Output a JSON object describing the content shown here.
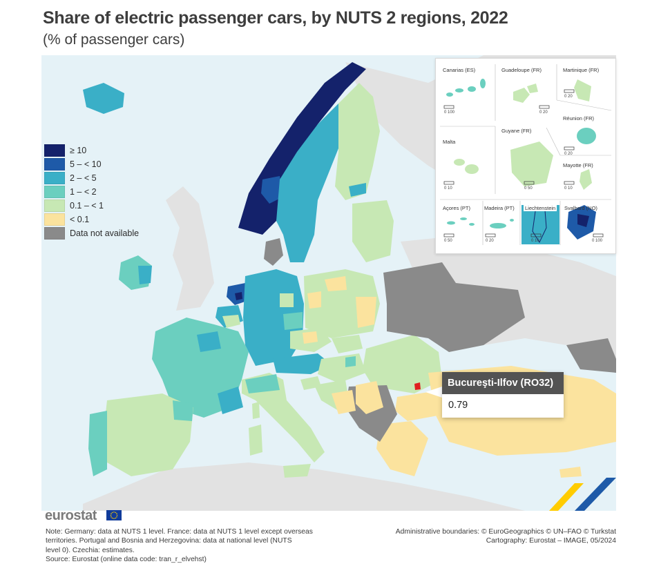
{
  "title": "Share of electric passenger cars, by NUTS 2 regions, 2022",
  "subtitle": "(% of passenger cars)",
  "legend": [
    {
      "label": "≥ 10",
      "color": "#14226b"
    },
    {
      "label": "5 – < 10",
      "color": "#1e5aa8"
    },
    {
      "label": "2 – < 5",
      "color": "#3aafc7"
    },
    {
      "label": "1 – < 2",
      "color": "#6bcfbf"
    },
    {
      "label": "0.1 – < 1",
      "color": "#c7e8b4"
    },
    {
      "label": "< 0.1",
      "color": "#fbe39e"
    },
    {
      "label": "Data not available",
      "color": "#8a8a8a"
    }
  ],
  "insets": {
    "canarias": {
      "label": "Canarias (ES)",
      "scale": "0   100"
    },
    "guadeloupe": {
      "label": "Guadeloupe (FR)",
      "scale": "0   20"
    },
    "martinique": {
      "label": "Martinique (FR)",
      "scale": "0   20"
    },
    "reunion": {
      "label": "Réunion (FR)",
      "scale": "0   20"
    },
    "guyane": {
      "label": "Guyane (FR)",
      "scale": "0   50"
    },
    "malta": {
      "label": "Malta",
      "scale": "0   10"
    },
    "mayotte": {
      "label": "Mayotte (FR)",
      "scale": "0   10"
    },
    "acores": {
      "label": "Açores (PT)",
      "scale": "0   50"
    },
    "madeira": {
      "label": "Madeira (PT)",
      "scale": "0   20"
    },
    "liechtenstein": {
      "label": "Liechtenstein",
      "scale": "0   10"
    },
    "svalbard": {
      "label": "Svalbard (NO)",
      "scale": "0  100"
    }
  },
  "tooltip": {
    "region": "Bucureşti-Ilfov (RO32)",
    "value": "0.79"
  },
  "branding": {
    "logo_text": "eurostat"
  },
  "note": [
    "Note: Germany: data at NUTS 1 level. France: data at NUTS 1 level except overseas",
    "territories. Portugal and Bosnia and Herzegovina: data at national level (NUTS",
    "level 0). Czechia: estimates.",
    "Source: Eurostat (online data code: tran_r_elvehst)"
  ],
  "credits": [
    "Administrative boundaries: © EuroGeographics © UN–FAO © Turkstat",
    "Cartography: Eurostat – IMAGE, 05/2024"
  ],
  "colors": {
    "sea": "#e5f2f7",
    "non_eu": "#e2e2e2",
    "no_data": "#8a8a8a",
    "highlight": "#e02020",
    "eu_flag": "#103b9a",
    "flag_stars": "#ffcc00"
  }
}
